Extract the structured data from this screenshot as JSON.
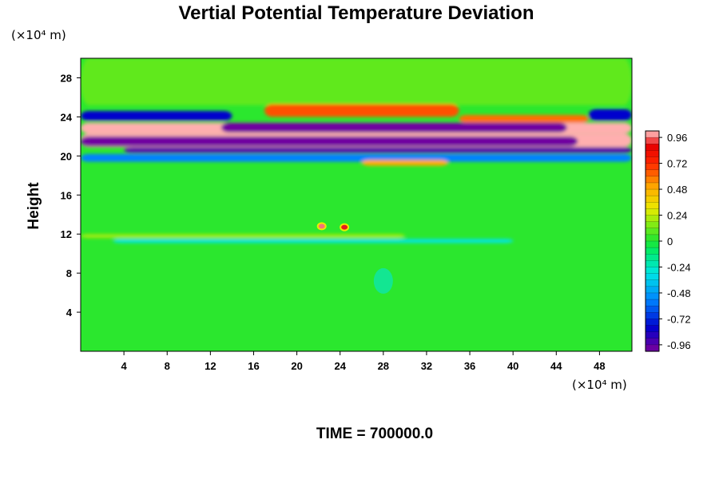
{
  "chart_data": {
    "type": "heatmap",
    "title": "Vertial Potential Temperature Deviation",
    "ylabel": "Height",
    "y_unit_label": "(×10⁴ m)",
    "x_unit_label": "(×10⁴ m)",
    "footer": "TIME = 700000.0",
    "xlim": [
      0,
      51
    ],
    "ylim": [
      0,
      30
    ],
    "x_ticks": [
      4,
      8,
      12,
      16,
      20,
      24,
      28,
      32,
      36,
      40,
      44,
      48
    ],
    "y_ticks": [
      4,
      8,
      12,
      16,
      20,
      24,
      28
    ],
    "colorbar": {
      "range": [
        -1.02,
        1.02
      ],
      "ticks": [
        0.96,
        0.72,
        0.48,
        0.24,
        0,
        -0.24,
        -0.48,
        -0.72,
        -0.96
      ],
      "tick_labels": [
        "0.96",
        "0.72",
        "0.48",
        "0.24",
        "0",
        "-0.24",
        "-0.48",
        "-0.72",
        "-0.96"
      ]
    },
    "background_value": 0.02,
    "bands": [
      {
        "name": "upper-green-band",
        "y_bottom": 25.2,
        "y_top": 30,
        "x_start": 0,
        "x_end": 51,
        "value": 0.1
      },
      {
        "name": "warm-arc-24.6",
        "y_bottom": 24.0,
        "y_top": 25.3,
        "x_start": 17,
        "x_end": 35,
        "value": 0.65
      },
      {
        "name": "cold-band-left-24.2",
        "y_bottom": 23.6,
        "y_top": 24.6,
        "x_start": 0,
        "x_end": 14,
        "value": -0.8
      },
      {
        "name": "warm-band-right-23.8",
        "y_bottom": 23.4,
        "y_top": 24.2,
        "x_start": 35,
        "x_end": 47,
        "value": 0.6
      },
      {
        "name": "cold-band-right-24.2",
        "y_bottom": 23.6,
        "y_top": 24.8,
        "x_start": 47,
        "x_end": 51,
        "value": -0.8
      },
      {
        "name": "pink-band-22.8",
        "y_bottom": 22.3,
        "y_top": 23.4,
        "x_start": 0,
        "x_end": 51,
        "value": 1.0
      },
      {
        "name": "purple-band-23.0",
        "y_bottom": 22.4,
        "y_top": 23.4,
        "x_start": 13,
        "x_end": 45,
        "value": -1.0
      },
      {
        "name": "pink-band-21.4",
        "y_bottom": 20.9,
        "y_top": 22.3,
        "x_start": 0,
        "x_end": 51,
        "value": 1.0
      },
      {
        "name": "purple-band-21.6",
        "y_bottom": 21.0,
        "y_top": 22.0,
        "x_start": 0,
        "x_end": 46,
        "value": -1.0
      },
      {
        "name": "purple-band-20.6",
        "y_bottom": 20.3,
        "y_top": 20.9,
        "x_start": 4,
        "x_end": 51,
        "value": -0.95
      },
      {
        "name": "cold-band-19.8",
        "y_bottom": 19.4,
        "y_top": 20.2,
        "x_start": 0,
        "x_end": 51,
        "value": -0.55
      },
      {
        "name": "warm-band-19.4",
        "y_bottom": 19.0,
        "y_top": 19.6,
        "x_start": 26,
        "x_end": 34,
        "value": 0.5
      },
      {
        "name": "cyan-line-11.4",
        "y_bottom": 11.1,
        "y_top": 11.5,
        "x_start": 3,
        "x_end": 40,
        "value": -0.3
      },
      {
        "name": "yellow-line-11.8",
        "y_bottom": 11.6,
        "y_top": 12.0,
        "x_start": 0,
        "x_end": 30,
        "value": 0.2
      }
    ],
    "spots": [
      {
        "name": "hot-spot-left",
        "x": 22.3,
        "y": 12.8,
        "value": 0.96
      },
      {
        "name": "hot-spot-right",
        "x": 24.4,
        "y": 12.7,
        "value": 0.9
      },
      {
        "name": "cool-plume",
        "x": 28.0,
        "y": 7.2,
        "value": -0.3
      }
    ]
  }
}
